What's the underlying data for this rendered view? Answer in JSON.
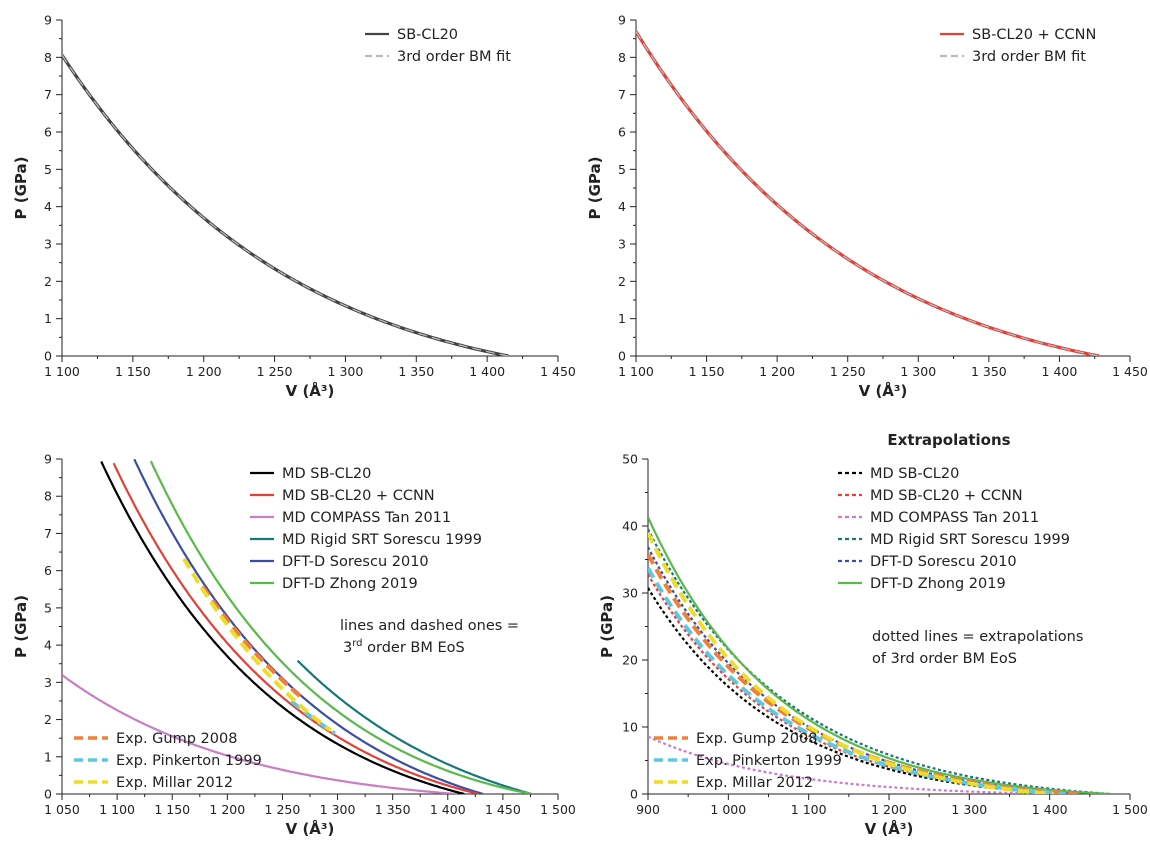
{
  "chart_data": [
    {
      "id": "tl",
      "type": "line",
      "title": "",
      "xlabel": "V (Å³)",
      "ylabel": "P (GPa)",
      "xlim": [
        1100,
        1450
      ],
      "ylim": [
        0,
        9
      ],
      "xticks": [
        1100,
        1150,
        1200,
        1250,
        1300,
        1350,
        1400,
        1450
      ],
      "xtick_labels": [
        "1 100",
        "1 150",
        "1 200",
        "1 250",
        "1 300",
        "1 350",
        "1 400",
        "1 450"
      ],
      "yticks": [
        0,
        1,
        2,
        3,
        4,
        5,
        6,
        7,
        8,
        9
      ],
      "ytick_labels": [
        "0",
        "1",
        "2",
        "3",
        "4",
        "5",
        "6",
        "7",
        "8",
        "9"
      ],
      "legend_position": "top-right",
      "series": [
        {
          "name": "SB-CL20",
          "color": "#444444",
          "style": "solid",
          "width": 3.2,
          "V0": 1415,
          "K0": 10.6,
          "Kp": 10.0,
          "pmin": 0,
          "pmax": 9
        },
        {
          "name": "3rd order BM fit",
          "color": "#bbbbbb",
          "style": "dashed",
          "width": 1.3,
          "V0": 1415,
          "K0": 10.6,
          "Kp": 10.0,
          "pmin": 0,
          "pmax": 9
        }
      ],
      "notes": []
    },
    {
      "id": "tr",
      "type": "line",
      "title": "",
      "xlabel": "V (Å³)",
      "ylabel": "P (GPa)",
      "xlim": [
        1100,
        1450
      ],
      "ylim": [
        0,
        9
      ],
      "xticks": [
        1100,
        1150,
        1200,
        1250,
        1300,
        1350,
        1400,
        1450
      ],
      "xtick_labels": [
        "1 100",
        "1 150",
        "1 200",
        "1 250",
        "1 300",
        "1 350",
        "1 400",
        "1 450"
      ],
      "yticks": [
        0,
        1,
        2,
        3,
        4,
        5,
        6,
        7,
        8,
        9
      ],
      "ytick_labels": [
        "0",
        "1",
        "2",
        "3",
        "4",
        "5",
        "6",
        "7",
        "8",
        "9"
      ],
      "legend_position": "top-right",
      "series": [
        {
          "name": "SB-CL20 + CCNN",
          "color": "#e0423a",
          "style": "solid",
          "width": 3.2,
          "V0": 1428,
          "K0": 10.4,
          "Kp": 10.3,
          "pmin": 0,
          "pmax": 9
        },
        {
          "name": "3rd order BM fit",
          "color": "#bbbbbb",
          "style": "dashed",
          "width": 1.3,
          "V0": 1428,
          "K0": 10.4,
          "Kp": 10.3,
          "pmin": 0,
          "pmax": 9
        }
      ],
      "notes": []
    },
    {
      "id": "bl",
      "type": "line",
      "title": "",
      "xlabel": "V (Å³)",
      "ylabel": "P (GPa)",
      "xlim": [
        1050,
        1500
      ],
      "ylim": [
        0,
        9
      ],
      "xticks": [
        1050,
        1100,
        1150,
        1200,
        1250,
        1300,
        1350,
        1400,
        1450,
        1500
      ],
      "xtick_labels": [
        "1 050",
        "1 100",
        "1 150",
        "1 200",
        "1 250",
        "1 300",
        "1 350",
        "1 400",
        "1 450",
        "1 500"
      ],
      "yticks": [
        0,
        1,
        2,
        3,
        4,
        5,
        6,
        7,
        8,
        9
      ],
      "ytick_labels": [
        "0",
        "1",
        "2",
        "3",
        "4",
        "5",
        "6",
        "7",
        "8",
        "9"
      ],
      "legend_position": "top-right",
      "legend2_position": "bottom-left",
      "series": [
        {
          "name": "MD COMPASS Tan 2011",
          "color": "#c87ec4",
          "style": "solid",
          "width": 2.2,
          "V0": 1408,
          "K0": 3.2,
          "Kp": 9.5,
          "pmin": 0,
          "pmax": 9,
          "legend": 1
        },
        {
          "name": "MD Rigid SRT Sorescu 1999",
          "color": "#17787a",
          "style": "solid",
          "width": 2.2,
          "V0": 1476,
          "K0": 12.0,
          "Kp": 9.0,
          "pmin": 0,
          "pmax": 3.6,
          "legend": 1
        },
        {
          "name": "DFT-D Zhong 2019",
          "color": "#59b94a",
          "style": "solid",
          "width": 2.2,
          "V0": 1476,
          "K0": 8.5,
          "Kp": 13.0,
          "pmin": 0,
          "pmax": 9,
          "legend": 1
        },
        {
          "name": "DFT-D Sorescu 2010",
          "color": "#3a4ea6",
          "style": "solid",
          "width": 2.2,
          "V0": 1432,
          "K0": 12.5,
          "Kp": 9.5,
          "pmin": 0,
          "pmax": 9,
          "legend": 1
        },
        {
          "name": "MD SB-CL20 + CCNN",
          "color": "#e0423a",
          "style": "solid",
          "width": 2.2,
          "V0": 1428,
          "K0": 10.4,
          "Kp": 10.3,
          "pmin": 0,
          "pmax": 9,
          "legend": 1
        },
        {
          "name": "MD SB-CL20",
          "color": "#000000",
          "style": "solid",
          "width": 2.2,
          "V0": 1415,
          "K0": 10.6,
          "Kp": 10.0,
          "pmin": 0,
          "pmax": 9,
          "legend": 1
        },
        {
          "name": "Exp. Gump 2008",
          "color": "#f07f3a",
          "style": "dashed",
          "width": 4,
          "V0": 1435,
          "K0": 12.0,
          "Kp": 9.5,
          "pmin": 2.5,
          "pmax": 5.6,
          "legend": 2
        },
        {
          "name": "Exp. Pinkerton 1999",
          "color": "#5fc8e0",
          "style": "dashed",
          "width": 4,
          "V0": 1420,
          "K0": 12.0,
          "Kp": 9.5,
          "pmin": 1.6,
          "pmax": 2.5,
          "legend": 2
        },
        {
          "name": "Exp. Millar 2012",
          "color": "#ecdc2b",
          "style": "dashed",
          "width": 4,
          "V0": 1405,
          "K0": 14.0,
          "Kp": 10.0,
          "pmin": 1.7,
          "pmax": 6.4,
          "legend": 2
        }
      ],
      "legend1_order": [
        "MD SB-CL20",
        "MD SB-CL20 + CCNN",
        "MD COMPASS Tan 2011",
        "MD Rigid SRT Sorescu 1999",
        "DFT-D Sorescu 2010",
        "DFT-D Zhong 2019"
      ],
      "legend2_order": [
        "Exp. Gump 2008",
        "Exp. Pinkerton 1999",
        "Exp. Millar 2012"
      ],
      "notes": [
        "lines and dashed ones =",
        "3",
        "rd",
        " order BM EoS"
      ]
    },
    {
      "id": "br",
      "type": "line",
      "title": "Extrapolations",
      "xlabel": "V (Å³)",
      "ylabel": "P (GPa)",
      "xlim": [
        900,
        1500
      ],
      "ylim": [
        0,
        50
      ],
      "xticks": [
        900,
        1000,
        1100,
        1200,
        1300,
        1400,
        1500
      ],
      "xtick_labels": [
        "900",
        "1 000",
        "1 100",
        "1 200",
        "1 300",
        "1 400",
        "1 500"
      ],
      "yticks": [
        0,
        10,
        20,
        30,
        40,
        50
      ],
      "ytick_labels": [
        "0",
        "10",
        "20",
        "30",
        "40",
        "50"
      ],
      "legend_position": "top-right",
      "legend2_position": "bottom-left",
      "series": [
        {
          "name": "MD COMPASS Tan 2011",
          "color": "#c87ec4",
          "style": "dotted",
          "width": 2.2,
          "V0": 1408,
          "K0": 3.2,
          "Kp": 9.5,
          "pmin": 0,
          "pmax": 50,
          "legend": 1
        },
        {
          "name": "DFT-D Sorescu 2010",
          "color": "#3a4ea6",
          "style": "dotted",
          "width": 2.2,
          "V0": 1432,
          "K0": 12.5,
          "Kp": 9.5,
          "pmin": 0,
          "pmax": 50,
          "legend": 1
        },
        {
          "name": "MD Rigid SRT Sorescu 1999",
          "color": "#17787a",
          "style": "dotted",
          "width": 2.2,
          "V0": 1476,
          "K0": 12.0,
          "Kp": 9.0,
          "pmin": 0,
          "pmax": 50,
          "legend": 1
        },
        {
          "name": "DFT-D Zhong 2019",
          "color": "#59b94a",
          "style": "solid",
          "width": 2.2,
          "V0": 1476,
          "K0": 8.5,
          "Kp": 13.0,
          "pmin": 0,
          "pmax": 50,
          "legend": 1
        },
        {
          "name": "MD SB-CL20 + CCNN",
          "color": "#e0423a",
          "style": "dotted",
          "width": 2.2,
          "V0": 1428,
          "K0": 10.4,
          "Kp": 10.3,
          "pmin": 0,
          "pmax": 50,
          "legend": 1
        },
        {
          "name": "MD SB-CL20",
          "color": "#000000",
          "style": "dotted",
          "width": 2.2,
          "V0": 1415,
          "K0": 10.6,
          "Kp": 10.0,
          "pmin": 0,
          "pmax": 50,
          "legend": 1
        },
        {
          "name": "Exp. Gump 2008",
          "color": "#f07f3a",
          "style": "dashed",
          "width": 4,
          "V0": 1435,
          "K0": 12.0,
          "Kp": 9.5,
          "pmin": 0,
          "pmax": 50,
          "legend": 2
        },
        {
          "name": "Exp. Pinkerton 1999",
          "color": "#5fc8e0",
          "style": "dashed",
          "width": 4,
          "V0": 1420,
          "K0": 12.0,
          "Kp": 9.5,
          "pmin": 0,
          "pmax": 50,
          "legend": 2
        },
        {
          "name": "Exp. Millar 2012",
          "color": "#ecdc2b",
          "style": "dashed",
          "width": 4,
          "V0": 1405,
          "K0": 14.0,
          "Kp": 10.0,
          "pmin": 0,
          "pmax": 50,
          "legend": 2
        }
      ],
      "legend1_order": [
        "MD SB-CL20",
        "MD SB-CL20 + CCNN",
        "MD COMPASS Tan 2011",
        "MD Rigid SRT Sorescu 1999",
        "DFT-D Sorescu 2010",
        "DFT-D Zhong 2019"
      ],
      "legend2_order": [
        "Exp. Gump 2008",
        "Exp. Pinkerton 1999",
        "Exp. Millar 2012"
      ],
      "notes": [
        "dotted lines = extrapolations",
        "of 3rd order BM EoS"
      ]
    }
  ]
}
